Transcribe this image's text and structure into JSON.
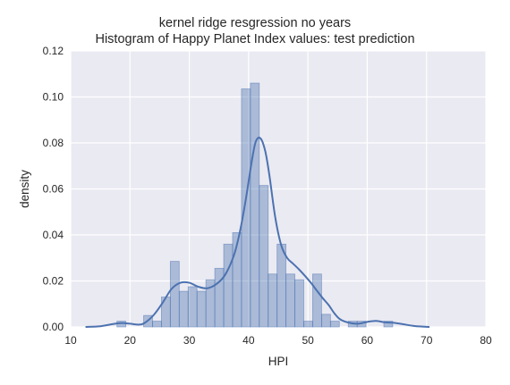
{
  "chart_data": {
    "type": "bar",
    "title": "kernel ridge resgression no years",
    "subtitle": "Histogram of Happy Planet Index values: test prediction",
    "xlabel": "HPI",
    "ylabel": "density",
    "xlim": [
      10,
      80
    ],
    "ylim": [
      0,
      0.12
    ],
    "xticks": [
      10,
      20,
      30,
      40,
      50,
      60,
      70,
      80
    ],
    "xtick_labels": [
      "10",
      "20",
      "30",
      "40",
      "50",
      "60",
      "70",
      "80"
    ],
    "yticks": [
      0.0,
      0.02,
      0.04,
      0.06,
      0.08,
      0.1,
      0.12
    ],
    "ytick_labels": [
      "0.00",
      "0.02",
      "0.04",
      "0.06",
      "0.08",
      "0.10",
      "0.12"
    ],
    "grid": true,
    "series": [
      {
        "name": "histogram",
        "type": "bar",
        "bin_edges": [
          17.8,
          19.3,
          20.8,
          22.3,
          23.8,
          25.3,
          26.8,
          28.3,
          29.8,
          31.3,
          32.8,
          34.3,
          35.8,
          37.3,
          38.8,
          40.3,
          41.8,
          43.3,
          44.8,
          46.3,
          47.8,
          49.3,
          50.8,
          52.3,
          53.8,
          55.3,
          56.8,
          58.3,
          59.8,
          61.3,
          62.8,
          64.3
        ],
        "values": [
          0.0025,
          0.0,
          0.0,
          0.005,
          0.0025,
          0.013,
          0.0285,
          0.0155,
          0.0175,
          0.0155,
          0.0205,
          0.0255,
          0.036,
          0.041,
          0.1035,
          0.106,
          0.0615,
          0.023,
          0.036,
          0.023,
          0.0205,
          0.0025,
          0.023,
          0.0055,
          0.0025,
          0.0,
          0.0025,
          0.0025,
          0.0,
          0.0,
          0.0025
        ]
      },
      {
        "name": "kde",
        "type": "line",
        "x": [
          12.5,
          15,
          17,
          18.5,
          20,
          21.5,
          22.5,
          24,
          25.5,
          27,
          28.5,
          30,
          31.5,
          33,
          34.5,
          36,
          37.5,
          38.5,
          39.5,
          40.5,
          41.2,
          42,
          42.8,
          43.5,
          44.5,
          45.5,
          46.5,
          47.5,
          48.5,
          49.5,
          50.5,
          51.5,
          52.5,
          53.5,
          54.5,
          55.5,
          57,
          58.5,
          60,
          61.5,
          63,
          64.5,
          66,
          68,
          70.5
        ],
        "y": [
          0.0,
          0.0003,
          0.0012,
          0.0017,
          0.0014,
          0.001,
          0.0018,
          0.0052,
          0.0105,
          0.0165,
          0.0192,
          0.0192,
          0.0175,
          0.0168,
          0.0185,
          0.0225,
          0.031,
          0.041,
          0.055,
          0.0715,
          0.0805,
          0.082,
          0.0765,
          0.066,
          0.0475,
          0.0355,
          0.03,
          0.0275,
          0.025,
          0.0222,
          0.0192,
          0.0158,
          0.0125,
          0.0095,
          0.0058,
          0.0032,
          0.0018,
          0.0014,
          0.0022,
          0.0026,
          0.002,
          0.0018,
          0.0012,
          0.0004,
          0.0
        ]
      }
    ]
  },
  "colors": {
    "plot_background": "#eaeaf2",
    "grid": "#ffffff",
    "bar_fill": "#4c72b0",
    "kde_line": "#4c72b0"
  }
}
